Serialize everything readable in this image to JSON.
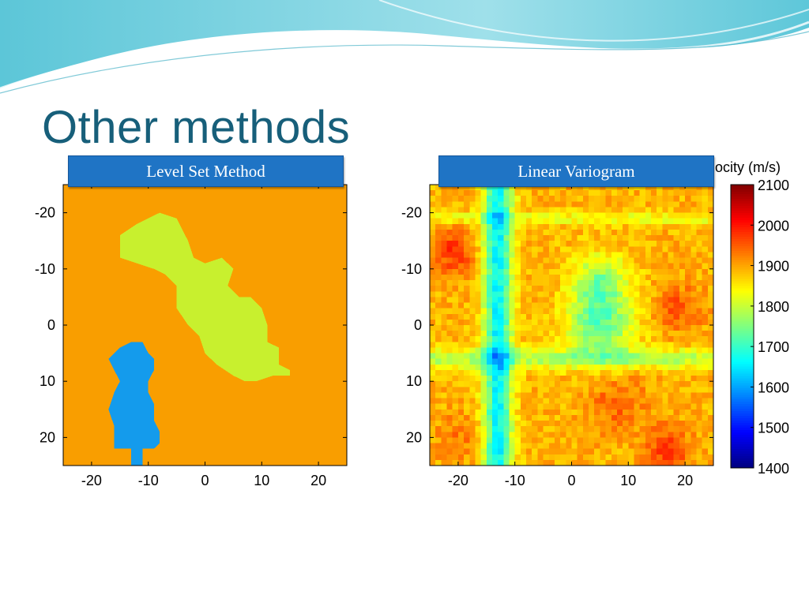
{
  "slide": {
    "title": "Other methods",
    "label_left": "Level Set Method",
    "label_right": "Linear Variogram"
  },
  "colors": {
    "title": "#175f7a",
    "label_bg": "#1f74c5",
    "background_orange": "#f99e00",
    "body_green": "#c8f02e",
    "body_blue": "#149bec"
  },
  "chart_data": [
    {
      "type": "heatmap",
      "title": "",
      "xlabel": "",
      "ylabel": "",
      "xlim": [
        -25,
        25
      ],
      "ylim": [
        -25,
        25
      ],
      "y_inverted": true,
      "x_ticks": [
        -20,
        -10,
        0,
        10,
        20
      ],
      "y_ticks": [
        -20,
        -10,
        0,
        10,
        20
      ],
      "grid": false,
      "regions": [
        {
          "color": "#f99e00",
          "fill": "background"
        },
        {
          "color": "#c8f02e",
          "shape": "elongated body tilted from upper-left to lower-right",
          "outline": [
            [
              -15,
              -16
            ],
            [
              -12,
              -18
            ],
            [
              -8,
              -20
            ],
            [
              -5,
              -19
            ],
            [
              -3,
              -15
            ],
            [
              -2,
              -12
            ],
            [
              0,
              -11
            ],
            [
              3,
              -12
            ],
            [
              5,
              -10
            ],
            [
              4,
              -7
            ],
            [
              6,
              -5
            ],
            [
              8,
              -5
            ],
            [
              10,
              -3
            ],
            [
              11,
              0
            ],
            [
              11,
              3
            ],
            [
              13,
              4
            ],
            [
              13,
              7
            ],
            [
              15,
              8
            ],
            [
              15,
              9
            ],
            [
              12,
              9
            ],
            [
              9,
              10
            ],
            [
              7,
              10
            ],
            [
              5,
              9
            ],
            [
              2,
              7
            ],
            [
              0,
              5
            ],
            [
              -1,
              2
            ],
            [
              -3,
              0
            ],
            [
              -5,
              -3
            ],
            [
              -5,
              -7
            ],
            [
              -7,
              -9
            ],
            [
              -9,
              -10
            ],
            [
              -12,
              -11
            ],
            [
              -15,
              -12
            ]
          ]
        },
        {
          "color": "#149bec",
          "shape": "vertical body",
          "outline": [
            [
              -13,
              3
            ],
            [
              -11,
              3
            ],
            [
              -10,
              5
            ],
            [
              -9,
              6
            ],
            [
              -9,
              8
            ],
            [
              -10,
              10
            ],
            [
              -10,
              12
            ],
            [
              -9,
              14
            ],
            [
              -9,
              17
            ],
            [
              -8,
              19
            ],
            [
              -8,
              21
            ],
            [
              -9,
              22
            ],
            [
              -11,
              22
            ],
            [
              -11,
              25
            ],
            [
              -13,
              25
            ],
            [
              -13,
              22
            ],
            [
              -16,
              22
            ],
            [
              -16,
              18
            ],
            [
              -17,
              15
            ],
            [
              -16,
              12
            ],
            [
              -15,
              10
            ],
            [
              -16,
              8
            ],
            [
              -17,
              6
            ],
            [
              -15,
              4
            ]
          ]
        }
      ]
    },
    {
      "type": "heatmap",
      "title": "",
      "xlabel": "",
      "ylabel": "",
      "xlim": [
        -25,
        25
      ],
      "ylim": [
        -25,
        25
      ],
      "y_inverted": true,
      "x_ticks": [
        -20,
        -10,
        0,
        10,
        20
      ],
      "y_ticks": [
        -20,
        -10,
        0,
        10,
        20
      ],
      "grid": false,
      "grid_cells": 50,
      "base_velocity": 1890,
      "features": [
        {
          "kind": "vertical-band",
          "x_center": -13,
          "half_width": 2.5,
          "velocity": 1660
        },
        {
          "kind": "horizontal-band",
          "y_center": 6,
          "half_width": 1.8,
          "velocity": 1790
        },
        {
          "kind": "horizontal-band",
          "y_center": -19,
          "half_width": 1.2,
          "velocity": 1830
        },
        {
          "kind": "patch",
          "x": 5,
          "y": 0,
          "radius": 6,
          "velocity": 1730
        },
        {
          "kind": "patch",
          "x": 5,
          "y": -8,
          "radius": 5,
          "velocity": 1770
        },
        {
          "kind": "patch",
          "x": -21,
          "y": -13,
          "radius": 4,
          "velocity": 1975
        },
        {
          "kind": "patch",
          "x": 19,
          "y": -3,
          "radius": 4,
          "velocity": 1955
        },
        {
          "kind": "patch",
          "x": 8,
          "y": 14,
          "radius": 5,
          "velocity": 1945
        },
        {
          "kind": "patch",
          "x": 17,
          "y": 22,
          "radius": 4,
          "velocity": 1975
        },
        {
          "kind": "patch",
          "x": -20,
          "y": 20,
          "radius": 4,
          "velocity": 1930
        }
      ],
      "colorbar": {
        "label": "ocity (m/s)",
        "min": 1400,
        "max": 2100,
        "ticks": [
          1400,
          1500,
          1600,
          1700,
          1800,
          1900,
          2000,
          2100
        ],
        "colormap": "jet"
      }
    }
  ]
}
